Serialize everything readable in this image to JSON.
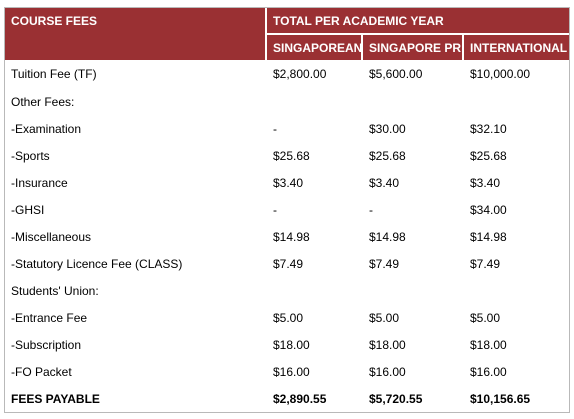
{
  "table": {
    "header": {
      "course_fees": "COURSE FEES",
      "total_per_year": "TOTAL PER ACADEMIC YEAR",
      "singaporean": "SINGAPOREAN",
      "singapore_pr": "SINGAPORE PR",
      "international": "INTERNATIONAL"
    },
    "rows": [
      {
        "label": "Tuition Fee (TF)",
        "singaporean": "$2,800.00",
        "singapore_pr": "$5,600.00",
        "international": "$10,000.00"
      },
      {
        "label": "Other Fees:",
        "singaporean": "",
        "singapore_pr": "",
        "international": ""
      },
      {
        "label": "-Examination",
        "singaporean": "-",
        "singapore_pr": "$30.00",
        "international": "$32.10"
      },
      {
        "label": "-Sports",
        "singaporean": "$25.68",
        "singapore_pr": "$25.68",
        "international": "$25.68"
      },
      {
        "label": "-Insurance",
        "singaporean": "$3.40",
        "singapore_pr": "$3.40",
        "international": "$3.40"
      },
      {
        "label": "-GHSI",
        "singaporean": "-",
        "singapore_pr": "-",
        "international": "$34.00"
      },
      {
        "label": "-Miscellaneous",
        "singaporean": "$14.98",
        "singapore_pr": "$14.98",
        "international": "$14.98"
      },
      {
        "label": "-Statutory Licence Fee (CLASS)",
        "singaporean": "$7.49",
        "singapore_pr": "$7.49",
        "international": "$7.49"
      },
      {
        "label": "Students' Union:",
        "singaporean": "",
        "singapore_pr": "",
        "international": ""
      },
      {
        "label": "-Entrance Fee",
        "singaporean": "$5.00",
        "singapore_pr": "$5.00",
        "international": "$5.00"
      },
      {
        "label": "-Subscription",
        "singaporean": "$18.00",
        "singapore_pr": "$18.00",
        "international": "$18.00"
      },
      {
        "label": "-FO Packet",
        "singaporean": "$16.00",
        "singapore_pr": "$16.00",
        "international": "$16.00"
      }
    ],
    "total": {
      "label": "FEES PAYABLE",
      "singaporean": "$2,890.55",
      "singapore_pr": "$5,720.55",
      "international": "$10,156.65"
    }
  }
}
